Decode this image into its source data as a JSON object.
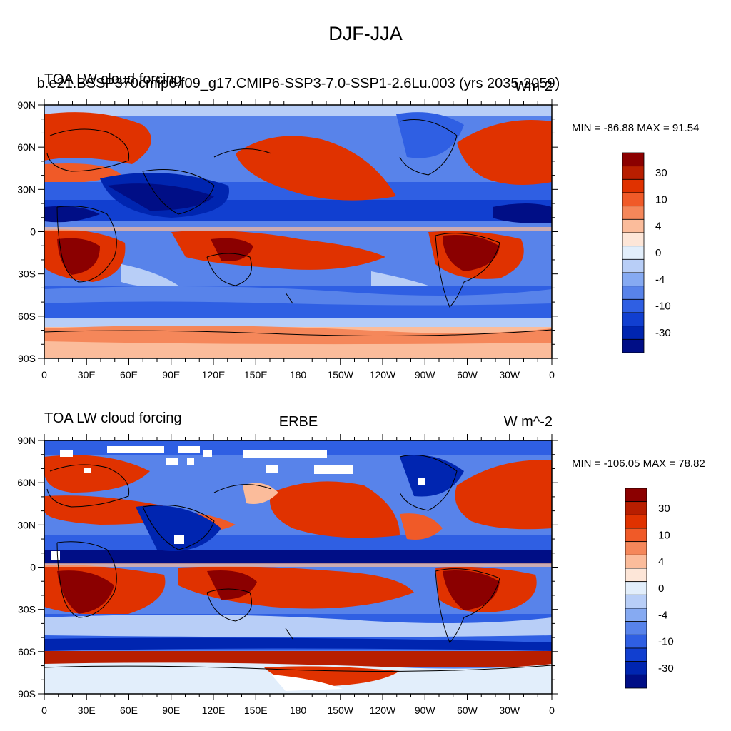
{
  "main_title": "DJF-JJA",
  "panels": [
    {
      "left_label": "TOA LW cloud forcing",
      "center_label": "b.e21.BSSP370cmip6.f09_g17.CMIP6-SSP3-7.0-SSP1-2.6Lu.003 (yrs 2035-2059)",
      "right_label": "Wm-2",
      "stats": "MIN = -86.88 MAX =  91.54"
    },
    {
      "left_label": "TOA LW cloud forcing",
      "center_label": "ERBE",
      "right_label": "W m^-2",
      "stats": "MIN = -106.05 MAX =  78.82"
    }
  ],
  "x_ticks": [
    "0",
    "30E",
    "60E",
    "90E",
    "120E",
    "150E",
    "180",
    "150W",
    "120W",
    "90W",
    "60W",
    "30W",
    "0"
  ],
  "y_ticks": [
    "90N",
    "60N",
    "30N",
    "0",
    "30S",
    "60S",
    "90S"
  ],
  "colorbar": {
    "labels": [
      "30",
      "10",
      "4",
      "0",
      "-4",
      "-10",
      "-30"
    ],
    "colors": [
      "#8b0000",
      "#b81e00",
      "#e03200",
      "#f05a28",
      "#f5875a",
      "#fbbc9b",
      "#fde6d8",
      "#e2eefb",
      "#b8cef7",
      "#86aaf2",
      "#5883ea",
      "#2f5fe3",
      "#113fd0",
      "#0025b0",
      "#000e86"
    ]
  },
  "palette": {
    "deep_red": "#8b0000",
    "red": "#e03200",
    "light_red": "#fbbc9b",
    "white": "#ffffff",
    "light_blue": "#b8cef7",
    "blue": "#2f5fe3",
    "deep_blue": "#000e86"
  }
}
